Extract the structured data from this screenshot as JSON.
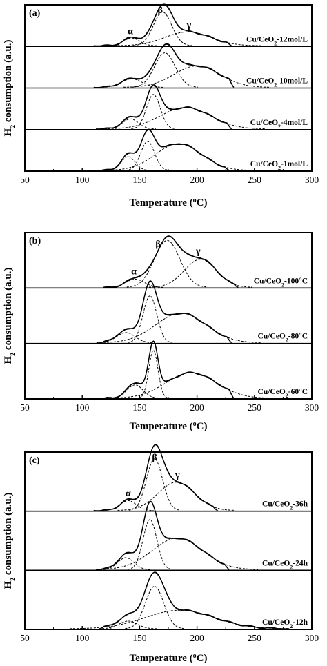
{
  "chart_data": [
    {
      "type": "line",
      "panel_label": "(a)",
      "xlabel_parts": {
        "base": "Temperature (",
        "sup": "o",
        "rest": "C)"
      },
      "ylabel_parts": {
        "pre": "H",
        "sub": "2",
        "post": " consumption (a.u.)"
      },
      "xlim": [
        50,
        300
      ],
      "x_ticks": [
        "50",
        "100",
        "150",
        "200",
        "250",
        "300"
      ],
      "peak_labels": [
        {
          "text": "α",
          "x": 142
        },
        {
          "text": "β",
          "x": 168
        },
        {
          "text": "γ",
          "x": 193
        }
      ],
      "series": [
        {
          "name_parts": {
            "pre": "Cu/CeO",
            "sub": "2",
            "post": "-12mol/L"
          },
          "envelope": {
            "start": 110,
            "end": 230,
            "peaks": [
              {
                "c": 143,
                "w": 7,
                "h": 0.2
              },
              {
                "c": 170,
                "w": 8,
                "h": 0.88
              },
              {
                "c": 192,
                "w": 20,
                "h": 0.36
              }
            ]
          }
        },
        {
          "name_parts": {
            "pre": "Cu/CeO",
            "sub": "2",
            "post": "-10mol/L"
          },
          "envelope": {
            "start": 110,
            "end": 232,
            "peaks": [
              {
                "c": 143,
                "w": 9,
                "h": 0.22
              },
              {
                "c": 172,
                "w": 9,
                "h": 0.9
              },
              {
                "c": 200,
                "w": 20,
                "h": 0.56
              }
            ]
          }
        },
        {
          "name_parts": {
            "pre": "Cu/CeO",
            "sub": "2",
            "post": "-4mol/L"
          },
          "envelope": {
            "start": 112,
            "end": 230,
            "peaks": [
              {
                "c": 142,
                "w": 7,
                "h": 0.26
              },
              {
                "c": 162,
                "w": 6,
                "h": 0.9
              },
              {
                "c": 190,
                "w": 22,
                "h": 0.56
              }
            ]
          }
        },
        {
          "name_parts": {
            "pre": "Cu/CeO",
            "sub": "2",
            "post": "-1mol/L"
          },
          "envelope": {
            "start": 112,
            "end": 228,
            "peaks": [
              {
                "c": 140,
                "w": 6,
                "h": 0.36
              },
              {
                "c": 157,
                "w": 6,
                "h": 0.76
              },
              {
                "c": 184,
                "w": 20,
                "h": 0.7
              }
            ]
          }
        }
      ]
    },
    {
      "type": "line",
      "panel_label": "(b)",
      "xlabel_parts": {
        "base": "Temperature (",
        "sup": "o",
        "rest": "C)"
      },
      "ylabel_parts": {
        "pre": "H",
        "sub": "2",
        "post": " consumption (a.u.)"
      },
      "xlim": [
        50,
        300
      ],
      "x_ticks": [
        "50",
        "100",
        "150",
        "200",
        "250",
        "300"
      ],
      "peak_labels": [
        {
          "text": "α",
          "x": 145
        },
        {
          "text": "β",
          "x": 166
        },
        {
          "text": "γ",
          "x": 201
        }
      ],
      "series": [
        {
          "name_parts": {
            "pre": "Cu/CeO",
            "sub": "2",
            "post": "-100°C"
          },
          "envelope": {
            "start": 118,
            "end": 236,
            "peaks": [
              {
                "c": 146,
                "w": 8,
                "h": 0.16
              },
              {
                "c": 174,
                "w": 11,
                "h": 0.92
              },
              {
                "c": 203,
                "w": 14,
                "h": 0.55
              }
            ]
          }
        },
        {
          "name_parts": {
            "pre": "Cu/CeO",
            "sub": "2",
            "post": "-80°C"
          },
          "envelope": {
            "start": 115,
            "end": 230,
            "peaks": [
              {
                "c": 138,
                "w": 8,
                "h": 0.2
              },
              {
                "c": 159,
                "w": 6,
                "h": 0.92
              },
              {
                "c": 186,
                "w": 22,
                "h": 0.58
              }
            ]
          }
        },
        {
          "name_parts": {
            "pre": "Cu/CeO",
            "sub": "2",
            "post": "-60°C"
          },
          "envelope": {
            "start": 118,
            "end": 232,
            "peaks": [
              {
                "c": 146,
                "w": 7,
                "h": 0.26
              },
              {
                "c": 162,
                "w": 4,
                "h": 0.94
              },
              {
                "c": 195,
                "w": 22,
                "h": 0.5
              }
            ]
          }
        }
      ]
    },
    {
      "type": "line",
      "panel_label": "(c)",
      "xlabel_parts": {
        "base": "Temperature (",
        "sup": "o",
        "rest": "C)"
      },
      "ylabel_parts": {
        "pre": "H",
        "sub": "2",
        "post": " consumption (a.u.)"
      },
      "xlim": [
        50,
        300
      ],
      "x_ticks": [
        "50",
        "100",
        "150",
        "200",
        "250",
        "300"
      ],
      "peak_labels": [
        {
          "text": "α",
          "x": 140
        },
        {
          "text": "β",
          "x": 163
        },
        {
          "text": "γ",
          "x": 183
        }
      ],
      "series": [
        {
          "name_parts": {
            "pre": "Cu/CeO",
            "sub": "2",
            "post": "-36h"
          },
          "envelope": {
            "start": 110,
            "end": 218,
            "peaks": [
              {
                "c": 140,
                "w": 7,
                "h": 0.18
              },
              {
                "c": 163,
                "w": 7,
                "h": 0.95
              },
              {
                "c": 182,
                "w": 16,
                "h": 0.52
              }
            ]
          }
        },
        {
          "name_parts": {
            "pre": "Cu/CeO",
            "sub": "2",
            "post": "-24h"
          },
          "envelope": {
            "start": 112,
            "end": 228,
            "peaks": [
              {
                "c": 138,
                "w": 7,
                "h": 0.22
              },
              {
                "c": 159,
                "w": 6,
                "h": 0.92
              },
              {
                "c": 183,
                "w": 22,
                "h": 0.58
              }
            ]
          }
        },
        {
          "name_parts": {
            "pre": "Cu/CeO",
            "sub": "2",
            "post": "-12h"
          },
          "envelope": {
            "start": 115,
            "end": 280,
            "peaks": [
              {
                "c": 140,
                "w": 8,
                "h": 0.14
              },
              {
                "c": 163,
                "w": 8,
                "h": 0.78
              },
              {
                "c": 185,
                "w": 30,
                "h": 0.34
              }
            ]
          }
        }
      ]
    }
  ]
}
